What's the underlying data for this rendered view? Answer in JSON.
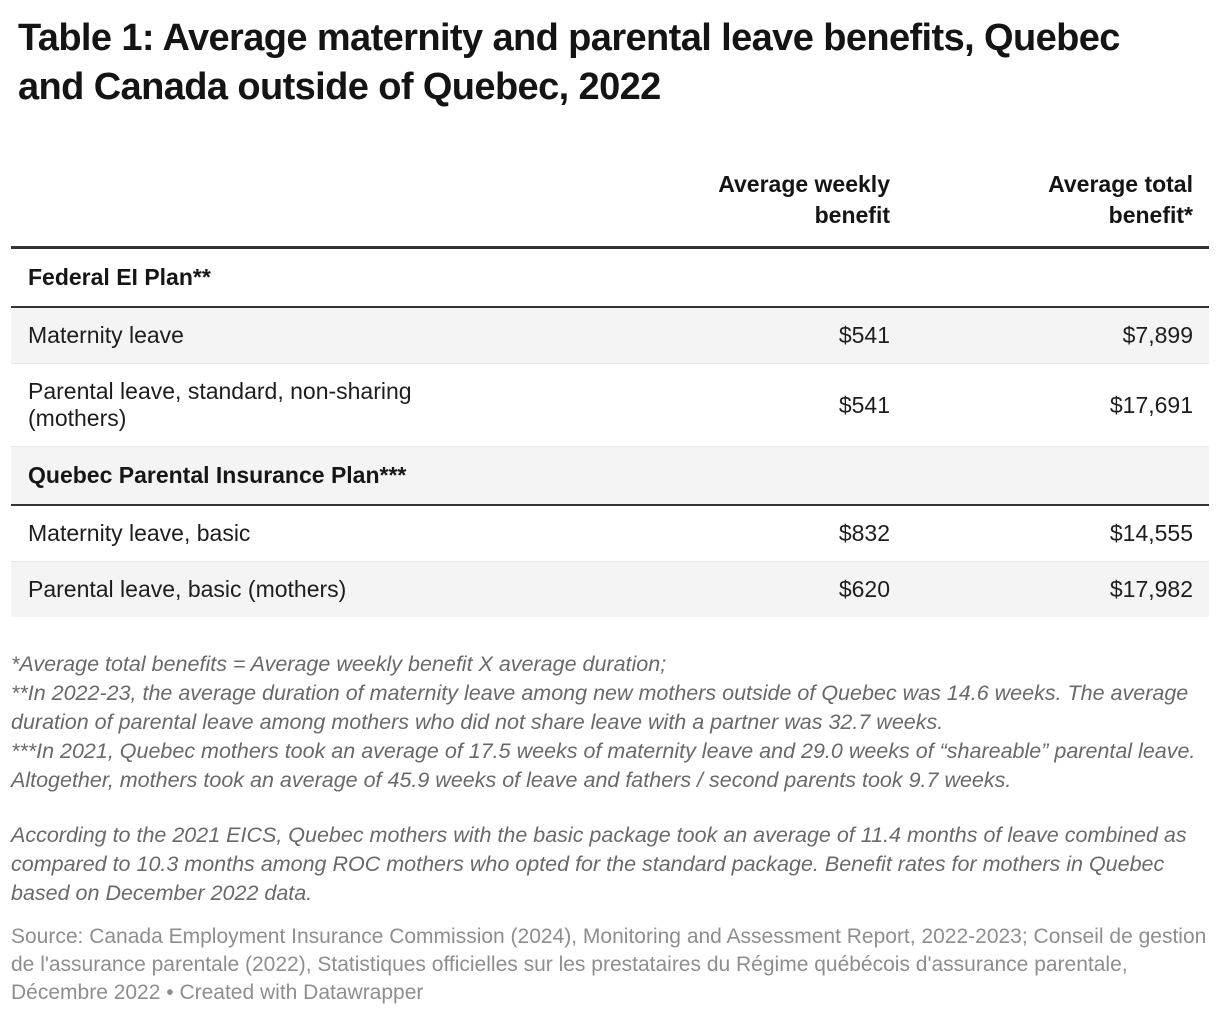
{
  "chart_data": {
    "type": "table",
    "title": "Table 1: Average maternity and parental leave benefits, Quebec and Canada outside of Quebec, 2022",
    "columns": [
      {
        "label": ""
      },
      {
        "label": "Average weekly benefit",
        "line1": "Average weekly",
        "line2": "benefit"
      },
      {
        "label": "Average total benefit*",
        "line1": "Average total",
        "line2": "benefit*"
      }
    ],
    "rows": [
      {
        "type": "section",
        "label": "Federal EI Plan**"
      },
      {
        "type": "data",
        "label": "Maternity leave",
        "weekly": "$541",
        "total": "$7,899"
      },
      {
        "type": "data",
        "label": "Parental leave, standard, non-sharing (mothers)",
        "weekly": "$541",
        "total": "$17,691"
      },
      {
        "type": "section",
        "label": "Quebec Parental Insurance Plan***"
      },
      {
        "type": "data",
        "label": "Maternity leave, basic",
        "weekly": "$832",
        "total": "$14,555"
      },
      {
        "type": "data",
        "label": "Parental leave, basic (mothers)",
        "weekly": "$620",
        "total": "$17,982"
      }
    ],
    "notes": [
      "*Average total benefits = Average weekly benefit X average duration;",
      "**In 2022-23, the average duration of maternity leave among new mothers outside of Quebec was 14.6 weeks. The average duration of parental leave among mothers who did not share leave with a partner was 32.7 weeks.",
      "***In 2021, Quebec mothers took an average of 17.5 weeks of maternity leave and 29.0 weeks of “shareable” parental leave. Altogether, mothers took an average of 45.9 weeks of leave and fathers / second parents took 9.7 weeks."
    ],
    "comment": "According to the 2021 EICS, Quebec mothers with the basic package took an average of 11.4 months of leave combined as compared to 10.3 months among ROC mothers who opted for the standard package. Benefit rates for mothers in Quebec based on December 2022 data.",
    "source": "Source: Canada Employment Insurance Commission (2024), Monitoring and Assessment Report, 2022-2023; Conseil de gestion de l'assurance parentale (2022), Statistiques officielles sur les prestataires du Régime québécois d'assurance parentale, Décembre 2022 • Created with Datawrapper",
    "layout_hints": {
      "zebra_striping": true,
      "stripe_color": "#f4f4f4",
      "header_border_color": "#333333",
      "row_border_color": "#e7e7e7",
      "text_color": "#1d1d1d",
      "notes_color": "#696969",
      "source_color": "#8e8e8e"
    }
  }
}
